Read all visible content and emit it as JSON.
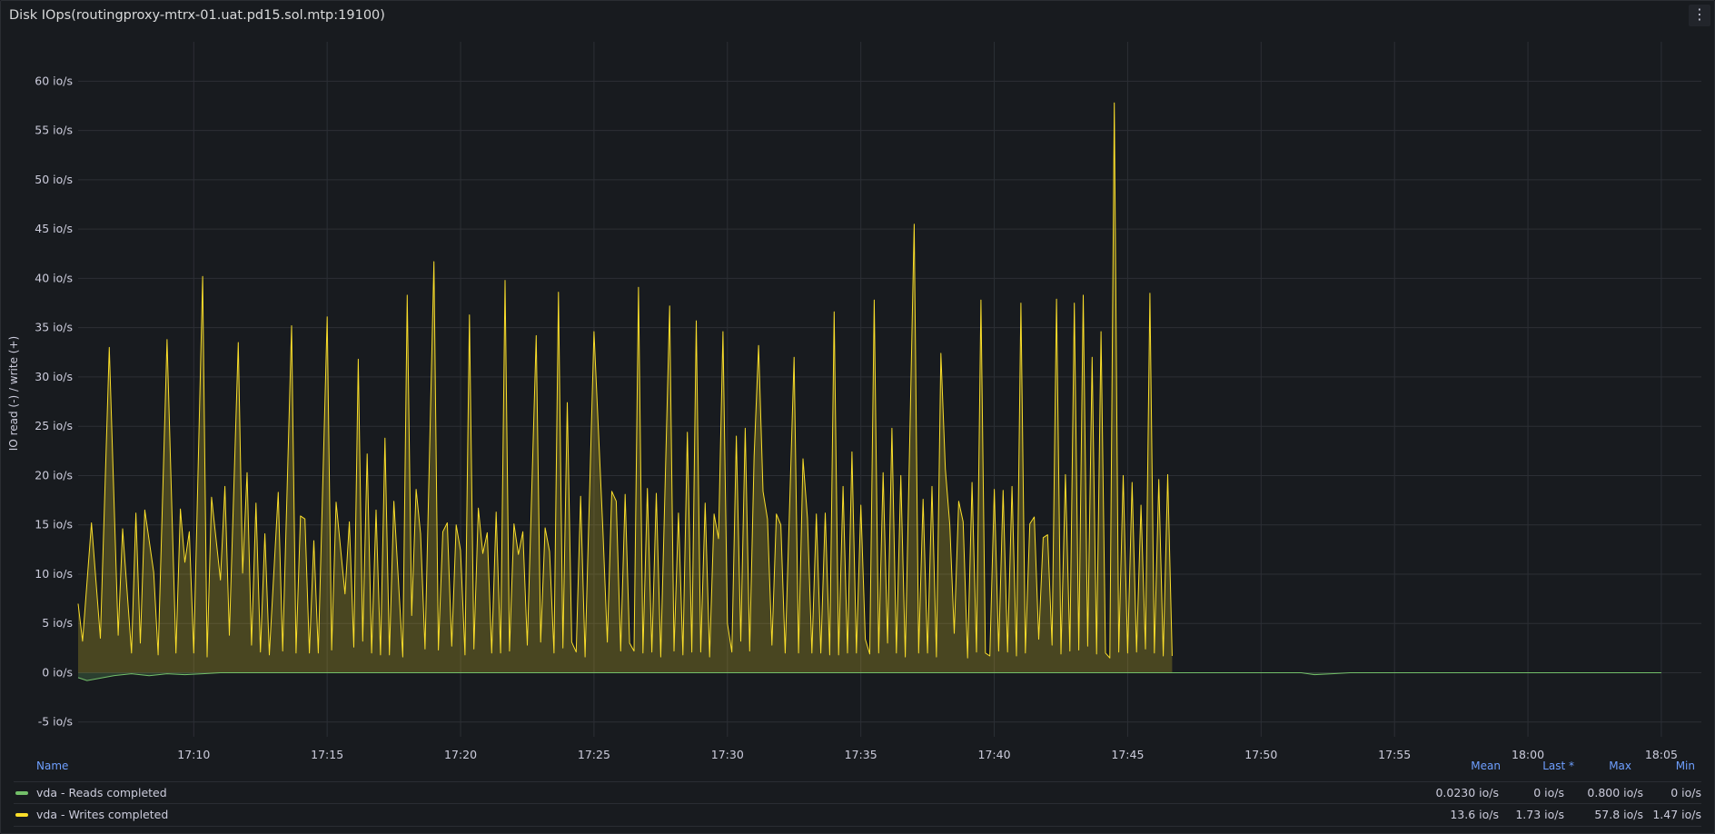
{
  "panel": {
    "title": "Disk IOps(routingproxy-mtrx-01.uat.pd15.sol.mtp:19100)",
    "menu_icon": "vertical-ellipsis-icon"
  },
  "legend": {
    "headers": {
      "name": "Name",
      "mean": "Mean",
      "last": "Last *",
      "max": "Max",
      "min": "Min"
    },
    "rows": [
      {
        "name": "vda - Reads completed",
        "color": "#73bf69",
        "mean": "0.0230 io/s",
        "last": "0 io/s",
        "max": "0.800 io/s",
        "min": "0 io/s"
      },
      {
        "name": "vda - Writes completed",
        "color": "#fade2a",
        "mean": "13.6 io/s",
        "last": "1.73 io/s",
        "max": "57.8 io/s",
        "min": "1.47 io/s"
      }
    ]
  },
  "chart_data": {
    "type": "area",
    "title": "Disk IOps(routingproxy-mtrx-01.uat.pd15.sol.mtp:19100)",
    "ylabel": "IO read (-) / write (+)",
    "y_unit": "io/s",
    "ylim": [
      -6.5,
      64
    ],
    "y_ticks": [
      -5,
      0,
      5,
      10,
      15,
      20,
      25,
      30,
      35,
      40,
      45,
      50,
      55,
      60
    ],
    "y_tick_labels": [
      "-5 io/s",
      "0 io/s",
      "5 io/s",
      "10 io/s",
      "15 io/s",
      "20 io/s",
      "25 io/s",
      "30 io/s",
      "35 io/s",
      "40 io/s",
      "45 io/s",
      "50 io/s",
      "55 io/s",
      "60 io/s"
    ],
    "x_ticks": [
      "17:10",
      "17:15",
      "17:20",
      "17:25",
      "17:30",
      "17:35",
      "17:40",
      "17:45",
      "17:50",
      "17:55",
      "18:00",
      "18:05"
    ],
    "xlim": [
      "17:05:40",
      "18:06:30"
    ],
    "grid": true,
    "legend_position": "bottom",
    "series": [
      {
        "name": "vda - Reads completed",
        "color": "#73bf69",
        "points": [
          [
            "17:05:40",
            -0.5
          ],
          [
            "17:06:00",
            -0.8
          ],
          [
            "17:07:00",
            -0.3
          ],
          [
            "17:07:40",
            -0.1
          ],
          [
            "17:08:20",
            -0.3
          ],
          [
            "17:09:00",
            -0.1
          ],
          [
            "17:09:40",
            -0.2
          ],
          [
            "17:10:20",
            -0.1
          ],
          [
            "17:11:00",
            0
          ],
          [
            "17:51:30",
            0
          ],
          [
            "17:52:00",
            -0.2
          ],
          [
            "17:52:40",
            -0.1
          ],
          [
            "17:53:20",
            0
          ],
          [
            "18:05:00",
            0
          ]
        ]
      },
      {
        "name": "vda - Writes completed",
        "color": "#fade2a",
        "points": [
          [
            "17:05:40",
            7.0
          ],
          [
            "17:05:50",
            3.2
          ],
          [
            "17:06:10",
            15.2
          ],
          [
            "17:06:30",
            3.5
          ],
          [
            "17:06:50",
            33.0
          ],
          [
            "17:07:10",
            3.8
          ],
          [
            "17:07:20",
            14.6
          ],
          [
            "17:07:40",
            2.0
          ],
          [
            "17:07:50",
            16.2
          ],
          [
            "17:08:00",
            3.0
          ],
          [
            "17:08:10",
            16.5
          ],
          [
            "17:08:30",
            10.2
          ],
          [
            "17:08:40",
            1.8
          ],
          [
            "17:09:00",
            33.8
          ],
          [
            "17:09:20",
            2.0
          ],
          [
            "17:09:30",
            16.6
          ],
          [
            "17:09:40",
            11.2
          ],
          [
            "17:09:50",
            14.3
          ],
          [
            "17:10:00",
            2.0
          ],
          [
            "17:10:20",
            40.2
          ],
          [
            "17:10:30",
            1.6
          ],
          [
            "17:10:40",
            17.8
          ],
          [
            "17:11:00",
            9.4
          ],
          [
            "17:11:10",
            18.9
          ],
          [
            "17:11:20",
            3.8
          ],
          [
            "17:11:40",
            33.5
          ],
          [
            "17:11:50",
            10.1
          ],
          [
            "17:12:00",
            20.3
          ],
          [
            "17:12:10",
            2.8
          ],
          [
            "17:12:20",
            17.2
          ],
          [
            "17:12:30",
            2.1
          ],
          [
            "17:12:40",
            14.1
          ],
          [
            "17:12:50",
            1.8
          ],
          [
            "17:13:10",
            18.3
          ],
          [
            "17:13:20",
            2.2
          ],
          [
            "17:13:40",
            35.2
          ],
          [
            "17:13:50",
            2.0
          ],
          [
            "17:14:00",
            15.9
          ],
          [
            "17:14:10",
            15.6
          ],
          [
            "17:14:20",
            2.0
          ],
          [
            "17:14:30",
            13.4
          ],
          [
            "17:14:40",
            2.0
          ],
          [
            "17:15:00",
            36.1
          ],
          [
            "17:15:10",
            2.3
          ],
          [
            "17:15:20",
            17.3
          ],
          [
            "17:15:40",
            8.0
          ],
          [
            "17:15:50",
            15.3
          ],
          [
            "17:16:00",
            2.6
          ],
          [
            "17:16:10",
            31.8
          ],
          [
            "17:16:20",
            3.2
          ],
          [
            "17:16:30",
            22.2
          ],
          [
            "17:16:40",
            2.0
          ],
          [
            "17:16:50",
            16.5
          ],
          [
            "17:17:00",
            1.8
          ],
          [
            "17:17:10",
            23.8
          ],
          [
            "17:17:20",
            1.8
          ],
          [
            "17:17:30",
            17.4
          ],
          [
            "17:17:50",
            1.6
          ],
          [
            "17:18:00",
            38.3
          ],
          [
            "17:18:10",
            5.8
          ],
          [
            "17:18:20",
            18.6
          ],
          [
            "17:18:30",
            14.1
          ],
          [
            "17:18:40",
            2.4
          ],
          [
            "17:19:00",
            41.7
          ],
          [
            "17:19:10",
            2.3
          ],
          [
            "17:19:20",
            14.3
          ],
          [
            "17:19:30",
            15.2
          ],
          [
            "17:19:40",
            2.7
          ],
          [
            "17:19:50",
            15.0
          ],
          [
            "17:20:00",
            12.4
          ],
          [
            "17:20:10",
            1.8
          ],
          [
            "17:20:20",
            36.3
          ],
          [
            "17:20:30",
            2.4
          ],
          [
            "17:20:40",
            16.7
          ],
          [
            "17:20:50",
            12.1
          ],
          [
            "17:21:00",
            14.2
          ],
          [
            "17:21:10",
            2.0
          ],
          [
            "17:21:20",
            16.3
          ],
          [
            "17:21:30",
            2.0
          ],
          [
            "17:21:40",
            39.8
          ],
          [
            "17:21:50",
            2.2
          ],
          [
            "17:22:00",
            15.1
          ],
          [
            "17:22:10",
            12.0
          ],
          [
            "17:22:20",
            14.3
          ],
          [
            "17:22:30",
            2.8
          ],
          [
            "17:22:50",
            34.2
          ],
          [
            "17:23:00",
            3.1
          ],
          [
            "17:23:10",
            14.7
          ],
          [
            "17:23:20",
            12.3
          ],
          [
            "17:23:30",
            2.0
          ],
          [
            "17:23:40",
            38.6
          ],
          [
            "17:23:50",
            2.5
          ],
          [
            "17:24:00",
            27.4
          ],
          [
            "17:24:10",
            3.1
          ],
          [
            "17:24:20",
            2.1
          ],
          [
            "17:24:30",
            17.9
          ],
          [
            "17:24:40",
            1.6
          ],
          [
            "17:25:00",
            34.6
          ],
          [
            "17:25:20",
            14.5
          ],
          [
            "17:25:30",
            3.1
          ],
          [
            "17:25:40",
            18.4
          ],
          [
            "17:25:50",
            17.4
          ],
          [
            "17:26:00",
            2.2
          ],
          [
            "17:26:10",
            18.1
          ],
          [
            "17:26:20",
            3.0
          ],
          [
            "17:26:30",
            2.2
          ],
          [
            "17:26:40",
            39.1
          ],
          [
            "17:26:50",
            2.0
          ],
          [
            "17:27:00",
            18.7
          ],
          [
            "17:27:10",
            2.1
          ],
          [
            "17:27:20",
            18.2
          ],
          [
            "17:27:30",
            1.6
          ],
          [
            "17:27:50",
            37.2
          ],
          [
            "17:28:00",
            2.2
          ],
          [
            "17:28:10",
            16.2
          ],
          [
            "17:28:20",
            1.8
          ],
          [
            "17:28:30",
            24.4
          ],
          [
            "17:28:40",
            2.1
          ],
          [
            "17:28:50",
            35.7
          ],
          [
            "17:29:00",
            2.1
          ],
          [
            "17:29:10",
            17.2
          ],
          [
            "17:29:20",
            1.6
          ],
          [
            "17:29:30",
            16.1
          ],
          [
            "17:29:40",
            13.6
          ],
          [
            "17:29:50",
            34.6
          ],
          [
            "17:30:00",
            5.0
          ],
          [
            "17:30:10",
            2.1
          ],
          [
            "17:30:20",
            24.0
          ],
          [
            "17:30:30",
            3.2
          ],
          [
            "17:30:40",
            24.8
          ],
          [
            "17:30:50",
            2.2
          ],
          [
            "17:31:00",
            22.0
          ],
          [
            "17:31:10",
            33.2
          ],
          [
            "17:31:20",
            18.4
          ],
          [
            "17:31:30",
            15.6
          ],
          [
            "17:31:40",
            2.8
          ],
          [
            "17:31:50",
            16.1
          ],
          [
            "17:32:00",
            15.0
          ],
          [
            "17:32:10",
            2.0
          ],
          [
            "17:32:30",
            32.0
          ],
          [
            "17:32:40",
            2.0
          ],
          [
            "17:32:50",
            21.7
          ],
          [
            "17:33:00",
            15.7
          ],
          [
            "17:33:10",
            2.0
          ],
          [
            "17:33:20",
            16.1
          ],
          [
            "17:33:30",
            2.0
          ],
          [
            "17:33:40",
            16.2
          ],
          [
            "17:33:50",
            1.8
          ],
          [
            "17:34:00",
            36.6
          ],
          [
            "17:34:10",
            1.8
          ],
          [
            "17:34:20",
            18.9
          ],
          [
            "17:34:30",
            2.0
          ],
          [
            "17:34:40",
            22.4
          ],
          [
            "17:34:50",
            2.0
          ],
          [
            "17:35:00",
            17.0
          ],
          [
            "17:35:10",
            3.4
          ],
          [
            "17:35:20",
            1.9
          ],
          [
            "17:35:30",
            37.8
          ],
          [
            "17:35:40",
            2.0
          ],
          [
            "17:35:50",
            20.3
          ],
          [
            "17:36:00",
            3.0
          ],
          [
            "17:36:10",
            24.8
          ],
          [
            "17:36:20",
            2.0
          ],
          [
            "17:36:30",
            20.0
          ],
          [
            "17:36:40",
            1.6
          ],
          [
            "17:37:00",
            45.5
          ],
          [
            "17:37:10",
            2.0
          ],
          [
            "17:37:20",
            17.6
          ],
          [
            "17:37:30",
            2.0
          ],
          [
            "17:37:40",
            18.9
          ],
          [
            "17:37:50",
            1.6
          ],
          [
            "17:38:00",
            32.4
          ],
          [
            "17:38:10",
            20.7
          ],
          [
            "17:38:20",
            15.0
          ],
          [
            "17:38:30",
            4.0
          ],
          [
            "17:38:40",
            17.4
          ],
          [
            "17:38:50",
            15.3
          ],
          [
            "17:39:00",
            1.5
          ],
          [
            "17:39:10",
            19.3
          ],
          [
            "17:39:20",
            2.1
          ],
          [
            "17:39:30",
            37.8
          ],
          [
            "17:39:40",
            2.0
          ],
          [
            "17:39:50",
            1.7
          ],
          [
            "17:40:00",
            18.6
          ],
          [
            "17:40:10",
            2.2
          ],
          [
            "17:40:20",
            18.5
          ],
          [
            "17:40:30",
            2.1
          ],
          [
            "17:40:40",
            18.9
          ],
          [
            "17:40:50",
            1.7
          ],
          [
            "17:41:00",
            37.5
          ],
          [
            "17:41:10",
            2.0
          ],
          [
            "17:41:20",
            15.1
          ],
          [
            "17:41:30",
            15.8
          ],
          [
            "17:41:40",
            3.4
          ],
          [
            "17:41:50",
            13.7
          ],
          [
            "17:42:00",
            14.0
          ],
          [
            "17:42:10",
            2.8
          ],
          [
            "17:42:20",
            37.9
          ],
          [
            "17:42:30",
            1.9
          ],
          [
            "17:42:40",
            20.1
          ],
          [
            "17:42:50",
            2.2
          ],
          [
            "17:43:00",
            37.5
          ],
          [
            "17:43:10",
            2.3
          ],
          [
            "17:43:20",
            38.3
          ],
          [
            "17:43:30",
            2.7
          ],
          [
            "17:43:40",
            32.0
          ],
          [
            "17:43:50",
            1.9
          ],
          [
            "17:44:00",
            34.6
          ],
          [
            "17:44:10",
            2.0
          ],
          [
            "17:44:20",
            1.5
          ],
          [
            "17:44:30",
            57.8
          ],
          [
            "17:44:40",
            2.1
          ],
          [
            "17:44:50",
            20.0
          ],
          [
            "17:45:00",
            2.0
          ],
          [
            "17:45:10",
            19.3
          ],
          [
            "17:45:20",
            2.1
          ],
          [
            "17:45:30",
            17.0
          ],
          [
            "17:45:40",
            2.4
          ],
          [
            "17:45:50",
            38.5
          ],
          [
            "17:46:00",
            2.0
          ],
          [
            "17:46:10",
            19.6
          ],
          [
            "17:46:20",
            1.7
          ],
          [
            "17:46:30",
            20.1
          ],
          [
            "17:46:40",
            1.7
          ]
        ]
      }
    ]
  }
}
